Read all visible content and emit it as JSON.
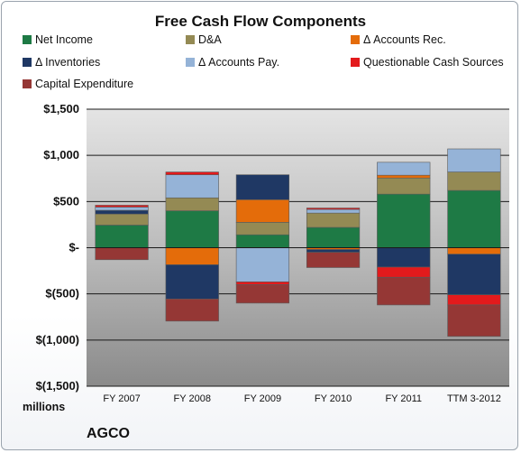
{
  "chart_data": {
    "type": "bar",
    "stacked": true,
    "title": "Free Cash Flow Components",
    "categories": [
      "FY 2007",
      "FY 2008",
      "FY 2009",
      "FY 2010",
      "FY 2011",
      "TTM 3-2012"
    ],
    "ylim": [
      -1500,
      1500
    ],
    "yticks": [
      1500,
      1000,
      500,
      0,
      -500,
      -1000,
      -1500
    ],
    "ytick_labels": [
      "$1,500",
      "$1,000",
      "$500",
      "$-",
      "$(500)",
      "$(1,000)",
      "$(1,500)"
    ],
    "units_label": "millions",
    "grid": true,
    "legend_position": "top",
    "series": [
      {
        "name": "Net Income",
        "color": "#1e7a45",
        "values": [
          245,
          400,
          140,
          220,
          580,
          620
        ]
      },
      {
        "name": "D&A",
        "color": "#948a54",
        "values": [
          120,
          140,
          135,
          155,
          175,
          200
        ]
      },
      {
        "name": "Δ Accounts Rec.",
        "color": "#e46c0a",
        "values": [
          0,
          -185,
          245,
          -20,
          30,
          -70
        ]
      },
      {
        "name": "Δ Inventories",
        "color": "#1f3864",
        "values": [
          40,
          -370,
          270,
          -30,
          -210,
          -440
        ]
      },
      {
        "name": "Δ Accounts Pay.",
        "color": "#95b3d7",
        "values": [
          35,
          250,
          -370,
          40,
          140,
          250
        ]
      },
      {
        "name": "Questionable Cash Sources",
        "color": "#e31a1c",
        "values": [
          20,
          30,
          -30,
          15,
          -110,
          -110
        ]
      },
      {
        "name": "Capital Expenditure",
        "color": "#953735",
        "values": [
          -130,
          -240,
          -200,
          -165,
          -300,
          -340
        ]
      }
    ]
  },
  "footer": {
    "company": "AGCO"
  }
}
